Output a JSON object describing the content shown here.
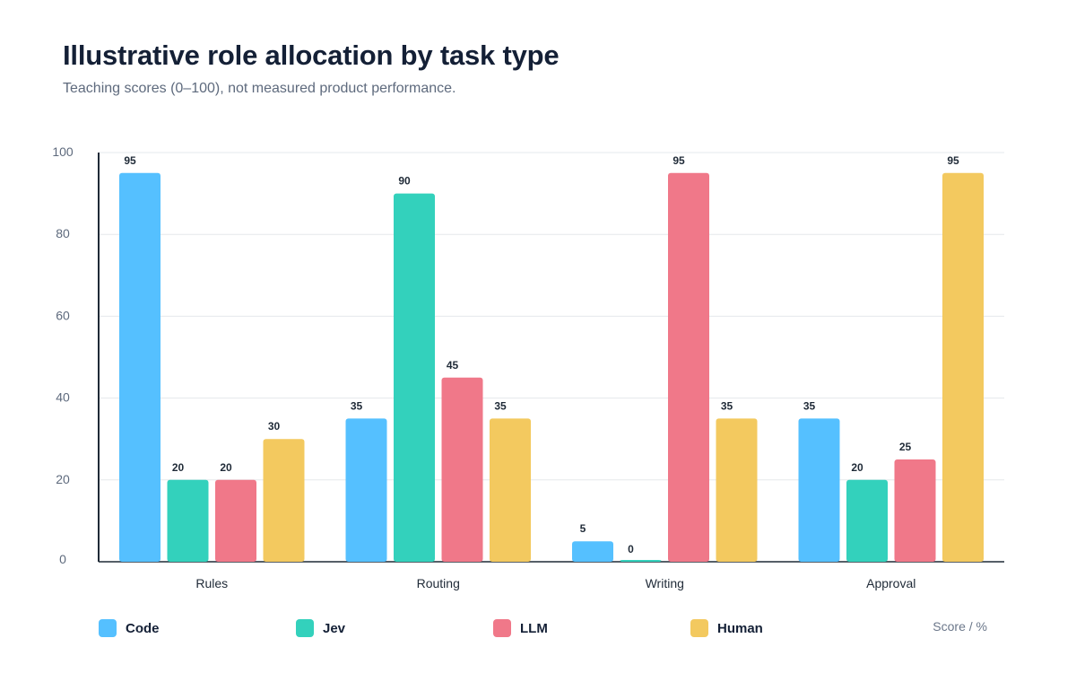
{
  "header": {
    "title": "Illustrative role allocation by task type",
    "subtitle": "Teaching scores (0–100), not measured product performance."
  },
  "chart_data": {
    "type": "bar",
    "title": "Illustrative role allocation by task type",
    "subtitle": "Teaching scores (0–100), not measured product performance.",
    "xlabel": "",
    "ylabel": "",
    "ylim": [
      0,
      100
    ],
    "yticks": [
      0,
      20,
      40,
      60,
      80,
      100
    ],
    "grid": true,
    "legend_position": "bottom",
    "unit_note": "Score / %",
    "categories": [
      "Rules",
      "Routing",
      "Writing",
      "Approval"
    ],
    "series": [
      {
        "name": "Code",
        "color": "#55c0ff",
        "values": [
          95,
          35,
          5,
          35
        ]
      },
      {
        "name": "Jev",
        "color": "#33d1bc",
        "values": [
          20,
          90,
          0,
          20
        ]
      },
      {
        "name": "LLM",
        "color": "#f07889",
        "values": [
          20,
          45,
          95,
          25
        ]
      },
      {
        "name": "Human",
        "color": "#f3c95f",
        "values": [
          30,
          35,
          35,
          95
        ]
      }
    ],
    "colors": {
      "gridline": "#e5e8ec",
      "axis": "#1f2a37",
      "tick_label": "#5e6a7d",
      "data_label": "#1f2a37"
    }
  }
}
